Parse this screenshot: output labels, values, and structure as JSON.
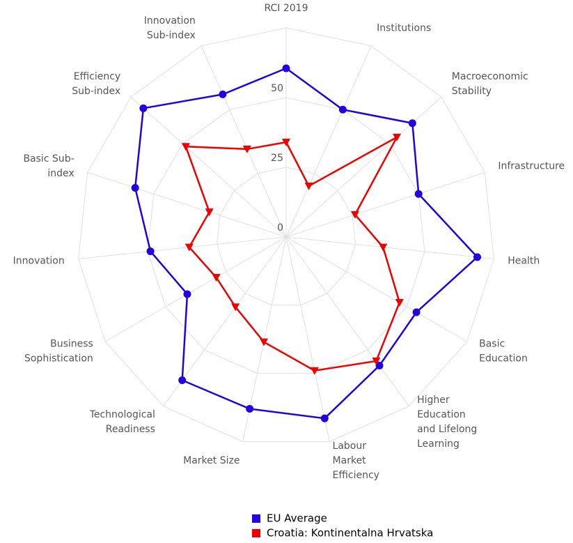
{
  "chart_data": {
    "type": "radar",
    "categories": [
      "RCI 2019",
      "Institutions",
      "Macroeconomic\nStability",
      "Infrastructure",
      "Health",
      "Basic\nEducation",
      "Higher\nEducation\nand Lifelong\nLearning",
      "Labour\nMarket\nEfficiency",
      "Market Size",
      "Technological\nReadiness",
      "Business\nSophistication",
      "Innovation",
      "Basic Sub-\nindex",
      "Efficiency\nSub-index",
      "Innovation\nSub-index"
    ],
    "series": [
      {
        "name": "EU Average",
        "color": "#2300e0",
        "marker": "circle",
        "values": [
          60.5,
          50,
          61,
          50,
          69,
          54,
          57,
          66.5,
          63,
          63.5,
          41,
          49,
          57,
          69,
          56
        ]
      },
      {
        "name": "Croatia: Kontinentalna Hrvatska",
        "color": "#ee0000",
        "marker": "triangle-down",
        "values": [
          34,
          20,
          53.5,
          26,
          35,
          47,
          55,
          49,
          38.5,
          31,
          29,
          35,
          29,
          48.5,
          34.5
        ]
      }
    ],
    "ylim": [
      0,
      75
    ],
    "yticks": [
      0,
      25,
      50
    ],
    "grid": true,
    "legend": "bottom"
  }
}
